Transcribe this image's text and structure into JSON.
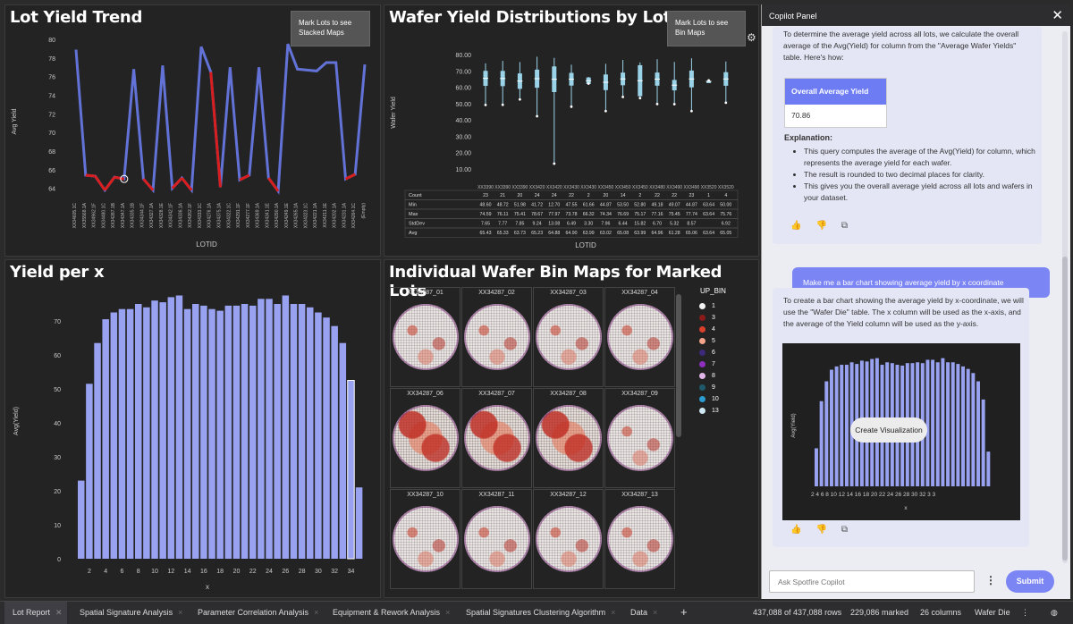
{
  "colors": {
    "bar": "#98a2f0",
    "line": "#6272d6",
    "line_red": "#d81e1e",
    "background": "#232323",
    "accent": "#7b85f4"
  },
  "lot_trend": {
    "title": "Lot Yield Trend",
    "button": "Mark Lots to see Stacked Maps",
    "ylabel": "Avg Yield",
    "xlabel": "LOTID",
    "yticks": [
      "80",
      "78",
      "76",
      "74",
      "72",
      "70",
      "68",
      "66",
      "64"
    ],
    "chart_data": {
      "type": "line",
      "ylim": [
        63,
        80
      ],
      "values": [
        78.9,
        65.4,
        65.3,
        63.8,
        65.2,
        65.0,
        76.8,
        65.0,
        63.8,
        77.2,
        64.0,
        65.1,
        63.8,
        79.2,
        76.5,
        64.1,
        77.0,
        64.9,
        65.4,
        77.0,
        65.1,
        63.7,
        79.5,
        76.8,
        76.7,
        76.6,
        77.5,
        77.5,
        65.0,
        65.5,
        77.3
      ],
      "marked": [
        1,
        2,
        3,
        4,
        5,
        7,
        8,
        10,
        11,
        12,
        14,
        15,
        17,
        18,
        20,
        21,
        28,
        29
      ],
      "categories": [
        "XX34605.1C",
        "XX35568.1A",
        "XX34962.1F",
        "XX34480.1C",
        "XX34287.1B",
        "XX34347.1A",
        "XX34335.1B",
        "XX34344.1F",
        "XX34327.1A",
        "XX34328.1E",
        "XX34342.1F",
        "XX34336.1A",
        "XX34262.1F",
        "XX34333.1C",
        "XX34276.1A",
        "XX34375.1A",
        "XX34322.1C",
        "XX34291.1F",
        "XX34277.1F",
        "XX34369.1A",
        "XX34341.1E",
        "XX34290.1A",
        "XX34249.1E",
        "XX34265.1A",
        "XX34323.1C",
        "XX34221.1A",
        "XX34211.1E",
        "XX34202.1A",
        "XX34231.1A",
        "XX34264.1C",
        "(Empty)"
      ]
    }
  },
  "wafer_dist": {
    "title": "Wafer Yield Distributions by Lot",
    "button": "Mark Lots to see Bin Maps",
    "ylabel": "Wafer Yield",
    "xlabel": "LOTID",
    "yticks": [
      "80.00",
      "70.00",
      "60.00",
      "50.00",
      "40.00",
      "30.00",
      "20.00",
      "10.00"
    ],
    "lot_headers": [
      "XX3390",
      "XX3390",
      "XX3390",
      "XX3420",
      "XX3420",
      "XX3430",
      "XX3430",
      "XX3450",
      "XX3450",
      "XX3450",
      "XX3480",
      "XX3490",
      "XX3490",
      "XX3520",
      "XX3520"
    ],
    "stats": [
      {
        "label": "Count",
        "values": [
          "23",
          "21",
          "20",
          "24",
          "24",
          "22",
          "2",
          "20",
          "14",
          "2",
          "22",
          "22",
          "23",
          "1",
          "4"
        ]
      },
      {
        "label": "Min",
        "values": [
          "48.60",
          "48.72",
          "51.98",
          "41.72",
          "12.70",
          "47.55",
          "61.66",
          "44.87",
          "53.50",
          "52.80",
          "49.18",
          "49.07",
          "44.87",
          "63.64",
          "50.00"
        ]
      },
      {
        "label": "Max",
        "values": [
          "74.59",
          "76.11",
          "75.41",
          "78.67",
          "77.97",
          "73.78",
          "66.32",
          "74.34",
          "76.69",
          "75.17",
          "77.16",
          "75.45",
          "77.74",
          "63.64",
          "75.76"
        ]
      },
      {
        "label": "StdDev",
        "values": [
          "7.65",
          "7.77",
          "7.85",
          "9.24",
          "13.08",
          "6.49",
          "3.30",
          "7.96",
          "6.44",
          "15.82",
          "6.70",
          "5.32",
          "8.57",
          "",
          "6.92"
        ]
      },
      {
        "label": "Avg",
        "values": [
          "65.43",
          "65.33",
          "63.73",
          "65.23",
          "64.88",
          "64.90",
          "63.99",
          "63.02",
          "65.08",
          "63.99",
          "64.96",
          "61.28",
          "65.06",
          "63.64",
          "65.05"
        ]
      }
    ]
  },
  "yield_x": {
    "title": "Yield per x",
    "ylabel": "Avg(Yield)",
    "xlabel": "x",
    "chart_data": {
      "type": "bar",
      "ylim": [
        0,
        80
      ],
      "yticks": [
        0,
        10,
        20,
        30,
        40,
        50,
        60,
        70
      ],
      "x": [
        1,
        2,
        3,
        4,
        5,
        6,
        7,
        8,
        9,
        10,
        11,
        12,
        13,
        14,
        15,
        16,
        17,
        18,
        19,
        20,
        21,
        22,
        23,
        24,
        25,
        26,
        27,
        28,
        29,
        30,
        31,
        32,
        33,
        34,
        35
      ],
      "xticks": [
        "2",
        "4",
        "6",
        "8",
        "10",
        "12",
        "14",
        "16",
        "18",
        "20",
        "22",
        "24",
        "26",
        "28",
        "30",
        "32",
        "34"
      ],
      "values": [
        23,
        51.5,
        63.5,
        70.5,
        72.5,
        73.5,
        73.5,
        75,
        74,
        76,
        75.5,
        77,
        77.5,
        73.5,
        75,
        74.5,
        73.5,
        73,
        74.5,
        74.5,
        75,
        74.5,
        76.5,
        76.5,
        75,
        77.5,
        75,
        75,
        74,
        72.5,
        71,
        68.5,
        63.5,
        52.5,
        21
      ]
    }
  },
  "bin_maps": {
    "title": "Individual Wafer Bin Maps for Marked Lots",
    "legend_title": "UP_BIN",
    "legend": [
      {
        "label": "1",
        "color": "#f2f2f2"
      },
      {
        "label": "3",
        "color": "#8b1a1a"
      },
      {
        "label": "4",
        "color": "#d9402b"
      },
      {
        "label": "5",
        "color": "#f3a48a"
      },
      {
        "label": "6",
        "color": "#3d2a7a"
      },
      {
        "label": "7",
        "color": "#8e2fbf"
      },
      {
        "label": "8",
        "color": "#e0b7e8"
      },
      {
        "label": "9",
        "color": "#1e5a6b"
      },
      {
        "label": "10",
        "color": "#2a9ccf"
      },
      {
        "label": "13",
        "color": "#cde8f2"
      }
    ],
    "wafers": [
      "XX34287_01",
      "XX34287_02",
      "XX34287_03",
      "XX34287_04",
      "XX34287_06",
      "XX34287_07",
      "XX34287_08",
      "XX34287_09",
      "XX34287_10",
      "XX34287_11",
      "XX34287_12",
      "XX34287_13"
    ]
  },
  "copilot": {
    "title": "Copilot Panel",
    "msg1_text": "To determine the average yield across all lots, we calculate the overall average of the Avg(Yield) for column from the \"Average Wafer Yields\" table. Here's how:",
    "table_header": "Overall Average Yield",
    "table_value": "70.86",
    "explanation_title": "Explanation:",
    "bullets": [
      "This query computes the average of the Avg(Yield) for column, which represents the average yield for each wafer.",
      "The result is rounded to two decimal places for clarity.",
      "This gives you the overall average yield across all lots and wafers in your dataset."
    ],
    "user_msg": "Make me a bar chart showing average yield by x coordinate",
    "msg2_text": "To create a bar chart showing the average yield by x-coordinate, we will use the \"Wafer Die\" table. The x column will be used as the x-axis, and the average of the Yield column will be used as the y-axis.",
    "mini_chart": {
      "ylabel": "Avg(Yield)",
      "xlabel": "x",
      "xticks": "2 4 6 8 10 12 14 16 18 20 22 24 26 28 30 32 3 3"
    },
    "create_btn": "Create Visualization",
    "input_placeholder": "Ask Spotfire Copilot",
    "submit": "Submit"
  },
  "tabs": [
    {
      "label": "Lot Report",
      "active": true
    },
    {
      "label": "Spatial Signature Analysis"
    },
    {
      "label": "Parameter Correlation Analysis"
    },
    {
      "label": "Equipment & Rework Analysis"
    },
    {
      "label": "Spatial Signatures Clustering Algorithm"
    },
    {
      "label": "Data"
    }
  ],
  "status": {
    "rows": "437,088 of 437,088 rows",
    "marked": "229,086 marked",
    "columns": "26 columns",
    "table": "Wafer Die"
  }
}
